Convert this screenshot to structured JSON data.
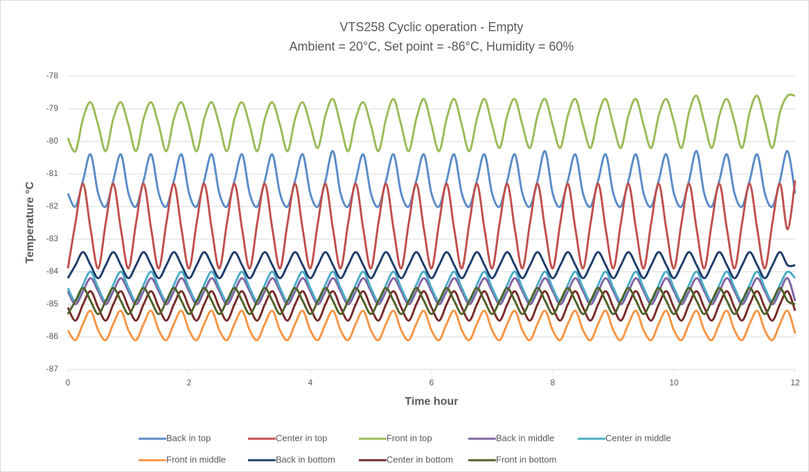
{
  "chart_data": {
    "type": "line",
    "title": "VTS258 Cyclic operation - Empty",
    "subtitle": "Ambient = 20°C, Set point = -86°C, Humidity = 60%",
    "x_label": "Time hour",
    "y_label": "Temperature °C",
    "xlim": [
      0,
      12
    ],
    "xticks": [
      0,
      2,
      4,
      6,
      8,
      10,
      12
    ],
    "ylim": [
      -87,
      -78
    ],
    "yticks": [
      -87,
      -86,
      -85,
      -84,
      -83,
      -82,
      -81,
      -80,
      -79,
      -78
    ],
    "grid": true,
    "legend": "bottom",
    "x": [
      0,
      0.125,
      0.25,
      0.375,
      0.5,
      0.625,
      0.75,
      0.875,
      1,
      1.125,
      1.25,
      1.375,
      1.5,
      1.625,
      1.75,
      1.875,
      2,
      2.125,
      2.25,
      2.375,
      2.5,
      2.625,
      2.75,
      2.875,
      3,
      3.125,
      3.25,
      3.375,
      3.5,
      3.625,
      3.75,
      3.875,
      4,
      4.125,
      4.25,
      4.375,
      4.5,
      4.625,
      4.75,
      4.875,
      5,
      5.125,
      5.25,
      5.375,
      5.5,
      5.625,
      5.75,
      5.875,
      6,
      6.125,
      6.25,
      6.375,
      6.5,
      6.625,
      6.75,
      6.875,
      7,
      7.125,
      7.25,
      7.375,
      7.5,
      7.625,
      7.75,
      7.875,
      8,
      8.125,
      8.25,
      8.375,
      8.5,
      8.625,
      8.75,
      8.875,
      9,
      9.125,
      9.25,
      9.375,
      9.5,
      9.625,
      9.75,
      9.875,
      10,
      10.125,
      10.25,
      10.375,
      10.5,
      10.625,
      10.75,
      10.875,
      11,
      11.125,
      11.25,
      11.375,
      11.5,
      11.625,
      11.75,
      11.875,
      12
    ],
    "series": [
      {
        "name": "Back in top",
        "color": "#5b8cc8",
        "values": [
          -81.6,
          -82.0,
          -81.2,
          -80.4,
          -81.6,
          -82.0,
          -81.2,
          -80.4,
          -81.6,
          -82.0,
          -81.2,
          -80.4,
          -81.6,
          -82.0,
          -81.2,
          -80.4,
          -81.6,
          -82.0,
          -81.2,
          -80.4,
          -81.6,
          -82.0,
          -81.2,
          -80.4,
          -81.6,
          -82.0,
          -81.2,
          -80.4,
          -81.6,
          -82.0,
          -81.2,
          -80.4,
          -81.6,
          -82.0,
          -81.2,
          -80.3,
          -81.6,
          -82.0,
          -81.2,
          -80.4,
          -81.6,
          -82.0,
          -81.2,
          -80.4,
          -81.6,
          -82.0,
          -81.2,
          -80.4,
          -81.6,
          -82.0,
          -81.2,
          -80.4,
          -81.6,
          -82.0,
          -81.2,
          -80.4,
          -81.6,
          -82.0,
          -81.2,
          -80.4,
          -81.6,
          -82.0,
          -81.2,
          -80.3,
          -81.6,
          -82.0,
          -81.2,
          -80.4,
          -81.6,
          -82.0,
          -81.2,
          -80.4,
          -81.6,
          -82.0,
          -81.2,
          -80.4,
          -81.6,
          -82.0,
          -81.2,
          -80.4,
          -81.6,
          -82.0,
          -81.2,
          -80.3,
          -81.6,
          -82.0,
          -81.2,
          -80.4,
          -81.6,
          -82.0,
          -81.2,
          -80.4,
          -81.6,
          -82.0,
          -81.2,
          -80.3,
          -81.6
        ]
      },
      {
        "name": "Center in top",
        "color": "#c0504d",
        "values": [
          -83.9,
          -82.5,
          -81.3,
          -82.7,
          -83.9,
          -82.5,
          -81.3,
          -82.7,
          -83.9,
          -82.5,
          -81.3,
          -82.7,
          -83.9,
          -82.5,
          -81.3,
          -82.7,
          -83.9,
          -82.5,
          -81.3,
          -82.7,
          -83.9,
          -82.5,
          -81.3,
          -82.7,
          -83.9,
          -82.5,
          -81.3,
          -82.7,
          -83.9,
          -82.5,
          -81.3,
          -82.7,
          -83.9,
          -82.5,
          -81.3,
          -82.7,
          -83.9,
          -82.5,
          -81.3,
          -82.7,
          -83.9,
          -82.5,
          -81.3,
          -82.7,
          -83.9,
          -82.5,
          -81.3,
          -82.7,
          -83.9,
          -82.5,
          -81.3,
          -82.7,
          -83.9,
          -82.5,
          -81.3,
          -82.7,
          -83.9,
          -82.5,
          -81.3,
          -82.7,
          -83.9,
          -82.5,
          -81.3,
          -82.7,
          -83.9,
          -82.5,
          -81.3,
          -82.7,
          -83.9,
          -82.5,
          -81.3,
          -82.7,
          -83.9,
          -82.5,
          -81.3,
          -82.7,
          -83.9,
          -82.5,
          -81.3,
          -82.7,
          -83.9,
          -82.5,
          -81.3,
          -82.7,
          -83.9,
          -82.5,
          -81.3,
          -82.7,
          -83.9,
          -82.5,
          -81.3,
          -82.7,
          -83.9,
          -82.5,
          -81.3,
          -82.7,
          -81.2
        ]
      },
      {
        "name": "Front in top",
        "color": "#9bbb59",
        "values": [
          -79.9,
          -80.3,
          -79.3,
          -78.8,
          -79.5,
          -80.3,
          -79.3,
          -78.8,
          -79.5,
          -80.3,
          -79.3,
          -78.8,
          -79.5,
          -80.3,
          -79.3,
          -78.8,
          -79.5,
          -80.3,
          -79.3,
          -78.8,
          -79.5,
          -80.3,
          -79.3,
          -78.8,
          -79.5,
          -80.3,
          -79.3,
          -78.8,
          -79.5,
          -80.3,
          -79.3,
          -78.8,
          -79.5,
          -80.2,
          -79.2,
          -78.7,
          -79.5,
          -80.3,
          -79.3,
          -78.8,
          -79.5,
          -80.3,
          -79.3,
          -78.7,
          -79.5,
          -80.3,
          -79.3,
          -78.7,
          -79.5,
          -80.3,
          -79.3,
          -78.7,
          -79.5,
          -80.3,
          -79.3,
          -78.7,
          -79.5,
          -80.2,
          -79.2,
          -78.7,
          -79.5,
          -80.2,
          -79.2,
          -78.7,
          -79.5,
          -80.2,
          -79.2,
          -78.7,
          -79.5,
          -80.2,
          -79.2,
          -78.7,
          -79.5,
          -80.2,
          -79.2,
          -78.7,
          -79.5,
          -80.2,
          -79.2,
          -78.7,
          -79.4,
          -80.2,
          -79.1,
          -78.6,
          -79.4,
          -80.2,
          -79.2,
          -78.7,
          -79.4,
          -80.2,
          -79.1,
          -78.6,
          -79.4,
          -80.2,
          -79.1,
          -78.6,
          -78.6
        ]
      },
      {
        "name": "Back in middle",
        "color": "#8064a2",
        "values": [
          -84.6,
          -85.0,
          -84.6,
          -84.2,
          -84.6,
          -85.0,
          -84.6,
          -84.2,
          -84.6,
          -85.0,
          -84.6,
          -84.2,
          -84.6,
          -85.0,
          -84.6,
          -84.2,
          -84.6,
          -85.0,
          -84.6,
          -84.2,
          -84.6,
          -85.0,
          -84.6,
          -84.2,
          -84.6,
          -85.0,
          -84.6,
          -84.2,
          -84.6,
          -85.0,
          -84.6,
          -84.2,
          -84.6,
          -85.0,
          -84.6,
          -84.2,
          -84.6,
          -85.0,
          -84.6,
          -84.2,
          -84.6,
          -85.0,
          -84.6,
          -84.2,
          -84.6,
          -85.0,
          -84.6,
          -84.2,
          -84.6,
          -85.0,
          -84.6,
          -84.2,
          -84.6,
          -85.0,
          -84.6,
          -84.2,
          -84.6,
          -85.0,
          -84.6,
          -84.2,
          -84.6,
          -85.0,
          -84.6,
          -84.2,
          -84.6,
          -85.0,
          -84.6,
          -84.2,
          -84.6,
          -85.0,
          -84.6,
          -84.2,
          -84.6,
          -85.0,
          -84.6,
          -84.2,
          -84.6,
          -85.0,
          -84.6,
          -84.2,
          -84.6,
          -85.0,
          -84.6,
          -84.2,
          -84.6,
          -85.0,
          -84.6,
          -84.2,
          -84.6,
          -85.0,
          -84.6,
          -84.2,
          -84.6,
          -85.0,
          -84.6,
          -84.2,
          -84.9
        ]
      },
      {
        "name": "Center in middle",
        "color": "#4bacc6",
        "values": [
          -84.5,
          -84.9,
          -84.4,
          -84.0,
          -84.5,
          -84.9,
          -84.4,
          -84.0,
          -84.5,
          -84.9,
          -84.4,
          -84.0,
          -84.5,
          -84.9,
          -84.4,
          -84.0,
          -84.5,
          -84.9,
          -84.4,
          -84.0,
          -84.5,
          -84.9,
          -84.4,
          -84.0,
          -84.5,
          -84.9,
          -84.4,
          -84.0,
          -84.5,
          -84.9,
          -84.4,
          -84.0,
          -84.5,
          -84.9,
          -84.4,
          -84.0,
          -84.5,
          -84.9,
          -84.4,
          -84.0,
          -84.5,
          -84.9,
          -84.4,
          -84.0,
          -84.5,
          -84.9,
          -84.4,
          -84.0,
          -84.5,
          -84.9,
          -84.4,
          -84.0,
          -84.5,
          -84.9,
          -84.4,
          -84.0,
          -84.5,
          -84.9,
          -84.4,
          -84.0,
          -84.5,
          -84.9,
          -84.4,
          -84.0,
          -84.5,
          -84.9,
          -84.4,
          -84.0,
          -84.5,
          -84.9,
          -84.4,
          -84.0,
          -84.5,
          -84.9,
          -84.4,
          -84.0,
          -84.5,
          -84.9,
          -84.4,
          -84.0,
          -84.5,
          -84.9,
          -84.4,
          -84.0,
          -84.5,
          -84.9,
          -84.4,
          -84.0,
          -84.5,
          -84.9,
          -84.4,
          -84.0,
          -84.5,
          -84.9,
          -84.4,
          -84.0,
          -84.2
        ]
      },
      {
        "name": "Front in middle",
        "color": "#f79646",
        "values": [
          -85.8,
          -86.1,
          -85.6,
          -85.2,
          -85.8,
          -86.1,
          -85.6,
          -85.2,
          -85.8,
          -86.1,
          -85.6,
          -85.2,
          -85.8,
          -86.1,
          -85.6,
          -85.2,
          -85.8,
          -86.1,
          -85.6,
          -85.2,
          -85.8,
          -86.1,
          -85.6,
          -85.2,
          -85.8,
          -86.1,
          -85.6,
          -85.2,
          -85.8,
          -86.1,
          -85.6,
          -85.2,
          -85.8,
          -86.1,
          -85.6,
          -85.2,
          -85.8,
          -86.1,
          -85.6,
          -85.2,
          -85.8,
          -86.1,
          -85.6,
          -85.2,
          -85.8,
          -86.1,
          -85.6,
          -85.2,
          -85.8,
          -86.1,
          -85.6,
          -85.2,
          -85.8,
          -86.1,
          -85.6,
          -85.2,
          -85.8,
          -86.1,
          -85.6,
          -85.2,
          -85.8,
          -86.1,
          -85.6,
          -85.2,
          -85.8,
          -86.1,
          -85.6,
          -85.2,
          -85.8,
          -86.1,
          -85.6,
          -85.2,
          -85.8,
          -86.1,
          -85.6,
          -85.2,
          -85.8,
          -86.1,
          -85.6,
          -85.2,
          -85.8,
          -86.1,
          -85.6,
          -85.2,
          -85.8,
          -86.1,
          -85.6,
          -85.2,
          -85.8,
          -86.1,
          -85.6,
          -85.2,
          -85.8,
          -86.1,
          -85.6,
          -85.2,
          -85.9
        ]
      },
      {
        "name": "Back in bottom",
        "color": "#1f3d6b",
        "values": [
          -84.2,
          -83.8,
          -83.4,
          -83.8,
          -84.2,
          -83.8,
          -83.4,
          -83.8,
          -84.2,
          -83.8,
          -83.4,
          -83.8,
          -84.2,
          -83.8,
          -83.4,
          -83.8,
          -84.2,
          -83.8,
          -83.4,
          -83.8,
          -84.2,
          -83.8,
          -83.4,
          -83.8,
          -84.2,
          -83.8,
          -83.4,
          -83.8,
          -84.2,
          -83.8,
          -83.4,
          -83.8,
          -84.2,
          -83.8,
          -83.4,
          -83.8,
          -84.2,
          -83.8,
          -83.4,
          -83.8,
          -84.2,
          -83.8,
          -83.4,
          -83.8,
          -84.2,
          -83.8,
          -83.4,
          -83.8,
          -84.2,
          -83.8,
          -83.4,
          -83.8,
          -84.2,
          -83.8,
          -83.4,
          -83.8,
          -84.2,
          -83.8,
          -83.4,
          -83.8,
          -84.2,
          -83.8,
          -83.4,
          -83.8,
          -84.2,
          -83.8,
          -83.4,
          -83.8,
          -84.2,
          -83.8,
          -83.4,
          -83.8,
          -84.2,
          -83.8,
          -83.4,
          -83.8,
          -84.2,
          -83.8,
          -83.4,
          -83.8,
          -84.2,
          -83.8,
          -83.4,
          -83.8,
          -84.2,
          -83.8,
          -83.4,
          -83.8,
          -84.2,
          -83.8,
          -83.4,
          -83.8,
          -84.2,
          -83.8,
          -83.4,
          -83.8,
          -83.8
        ]
      },
      {
        "name": "Center in bottom",
        "color": "#772c2a",
        "values": [
          -85.1,
          -85.5,
          -85.0,
          -84.6,
          -85.1,
          -85.5,
          -85.0,
          -84.6,
          -85.1,
          -85.5,
          -85.0,
          -84.6,
          -85.1,
          -85.5,
          -85.0,
          -84.6,
          -85.1,
          -85.5,
          -85.0,
          -84.6,
          -85.1,
          -85.5,
          -85.0,
          -84.6,
          -85.1,
          -85.5,
          -85.0,
          -84.6,
          -85.1,
          -85.5,
          -85.0,
          -84.6,
          -85.1,
          -85.5,
          -85.0,
          -84.6,
          -85.1,
          -85.5,
          -85.0,
          -84.6,
          -85.1,
          -85.5,
          -85.0,
          -84.6,
          -85.1,
          -85.5,
          -85.0,
          -84.6,
          -85.1,
          -85.5,
          -85.0,
          -84.6,
          -85.1,
          -85.5,
          -85.0,
          -84.6,
          -85.1,
          -85.5,
          -85.0,
          -84.6,
          -85.1,
          -85.5,
          -85.0,
          -84.6,
          -85.1,
          -85.5,
          -85.0,
          -84.6,
          -85.1,
          -85.5,
          -85.0,
          -84.6,
          -85.1,
          -85.5,
          -85.0,
          -84.6,
          -85.1,
          -85.5,
          -85.0,
          -84.6,
          -85.1,
          -85.5,
          -85.0,
          -84.6,
          -85.1,
          -85.5,
          -85.0,
          -84.6,
          -85.1,
          -85.5,
          -85.0,
          -84.6,
          -85.1,
          -85.5,
          -85.0,
          -84.6,
          -85.2
        ]
      },
      {
        "name": "Front in bottom",
        "color": "#4f6228",
        "values": [
          -85.3,
          -84.9,
          -84.5,
          -84.9,
          -85.3,
          -84.9,
          -84.5,
          -84.9,
          -85.3,
          -84.9,
          -84.5,
          -84.9,
          -85.3,
          -84.9,
          -84.5,
          -84.9,
          -85.3,
          -84.9,
          -84.5,
          -84.9,
          -85.3,
          -84.9,
          -84.5,
          -84.9,
          -85.3,
          -84.9,
          -84.5,
          -84.9,
          -85.3,
          -84.9,
          -84.5,
          -84.9,
          -85.3,
          -84.9,
          -84.5,
          -84.9,
          -85.3,
          -84.9,
          -84.5,
          -84.9,
          -85.3,
          -84.9,
          -84.5,
          -84.9,
          -85.3,
          -84.9,
          -84.5,
          -84.9,
          -85.3,
          -84.9,
          -84.5,
          -84.9,
          -85.3,
          -84.9,
          -84.5,
          -84.9,
          -85.3,
          -84.9,
          -84.5,
          -84.9,
          -85.3,
          -84.9,
          -84.5,
          -84.9,
          -85.3,
          -84.9,
          -84.5,
          -84.9,
          -85.3,
          -84.9,
          -84.5,
          -84.9,
          -85.3,
          -84.9,
          -84.5,
          -84.9,
          -85.3,
          -84.9,
          -84.5,
          -84.9,
          -85.3,
          -84.9,
          -84.5,
          -84.9,
          -85.3,
          -84.9,
          -84.5,
          -84.9,
          -85.3,
          -84.9,
          -84.5,
          -84.9,
          -85.3,
          -84.9,
          -84.5,
          -84.9,
          -85.0
        ]
      }
    ]
  }
}
